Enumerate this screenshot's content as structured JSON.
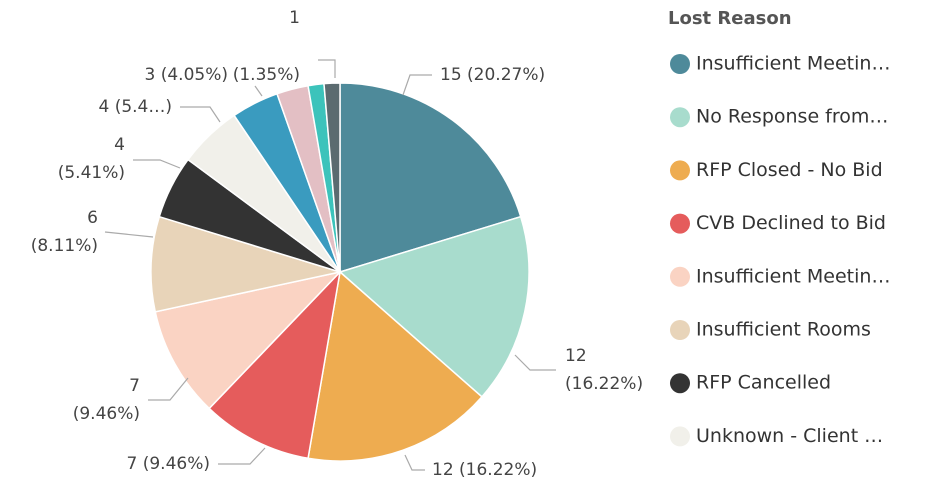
{
  "chart_data": {
    "type": "pie",
    "legend_title": "Lost Reason",
    "categories": [
      "Insufficient Meetin…",
      "No Response from…",
      "RFP Closed - No Bid",
      "CVB Declined to Bid",
      "Insufficient Meetin…",
      "Insufficient Rooms",
      "RFP Cancelled",
      "Unknown - Client …",
      null,
      null,
      null,
      null
    ],
    "values": [
      15,
      12,
      12,
      7,
      7,
      6,
      4,
      4,
      3,
      2,
      1,
      1
    ],
    "value_labels": [
      "15 (20.27%)",
      "12\n(16.22%)",
      "12 (16.22%)",
      "7 (9.46%)",
      "7\n(9.46%)",
      "6\n(8.11%)",
      "4\n(5.41%)",
      "4 (5.4…)",
      "3 (4.05%)",
      null,
      null,
      "1\n(1.35%)"
    ],
    "colors": [
      "#4e8a9a",
      "#a8dccd",
      "#eeac50",
      "#e55c5c",
      "#fad3c3",
      "#e8d4b9",
      "#333333",
      "#f1f0ea",
      "#3a9bbf",
      "#e3bfc4",
      "#3cc3bb",
      "#5b6b70"
    ],
    "legend": "right"
  }
}
